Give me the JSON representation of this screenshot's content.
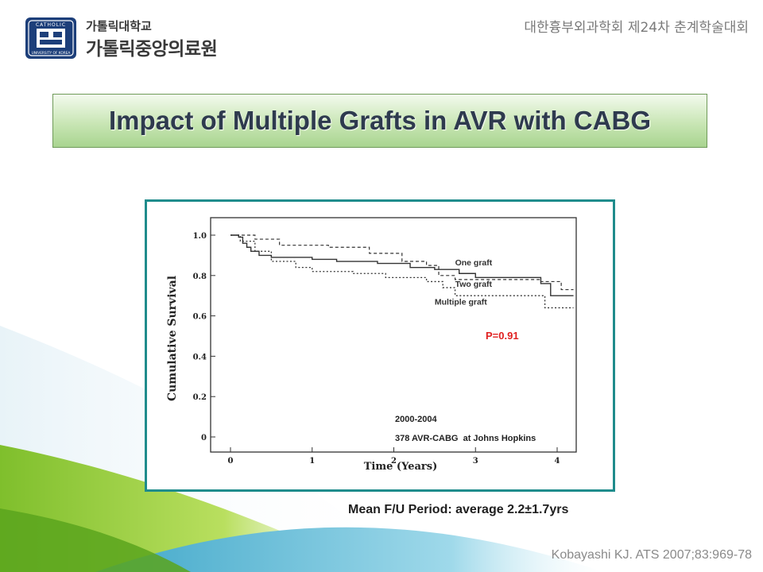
{
  "header": {
    "university_name": "가톨릭대학교",
    "hospital_name": "가톨릭중앙의료원",
    "logo_ring_top": "CATHOLIC",
    "logo_ring_bottom": "UNIVERSITY OF KOREA",
    "conference": "대한흉부외과학회 제24차 춘계학술대회"
  },
  "slide": {
    "title": "Impact of Multiple Grafts in AVR with CABG",
    "mean_fu": "Mean F/U Period: average 2.2±1.7yrs",
    "citation": "Kobayashi KJ. ATS 2007;83:969-78"
  },
  "colors": {
    "title_text": "#2e3a4e",
    "frame": "#1f8c8c",
    "p_value": "#e02020",
    "green_wave": "#8cc63f",
    "teal_wave": "#5bbad5"
  },
  "chart_data": {
    "type": "line",
    "xlabel": "Time (Years)",
    "ylabel": "Cumulative Survival",
    "xlim": [
      0,
      4.2
    ],
    "ylim": [
      0,
      1.0
    ],
    "x_ticks": [
      0,
      1,
      2,
      3,
      4
    ],
    "x_tick_labels": [
      "0",
      "1",
      "2",
      "3",
      "4"
    ],
    "y_ticks": [
      0,
      0.2,
      0.4,
      0.6,
      0.8,
      1.0
    ],
    "y_tick_labels": [
      "0",
      "0.2",
      "0.4",
      "0.6",
      "0.8",
      "1.0"
    ],
    "p_value": "P=0.91",
    "annotation_period": "2000-2004",
    "annotation_cohort": "378 AVR-CABG  at Johns Hopkins",
    "series": [
      {
        "name": "One graft",
        "style": "solid",
        "points": [
          [
            0,
            1.0
          ],
          [
            0.1,
            0.99
          ],
          [
            0.15,
            0.96
          ],
          [
            0.2,
            0.94
          ],
          [
            0.25,
            0.92
          ],
          [
            0.35,
            0.9
          ],
          [
            0.5,
            0.89
          ],
          [
            1.0,
            0.88
          ],
          [
            1.3,
            0.87
          ],
          [
            1.8,
            0.86
          ],
          [
            2.2,
            0.84
          ],
          [
            2.5,
            0.83
          ],
          [
            2.8,
            0.81
          ],
          [
            3.0,
            0.79
          ],
          [
            3.8,
            0.76
          ],
          [
            3.92,
            0.7
          ],
          [
            4.2,
            0.7
          ]
        ]
      },
      {
        "name": "Two graft",
        "style": "dashed",
        "points": [
          [
            0,
            1.0
          ],
          [
            0.3,
            0.98
          ],
          [
            0.6,
            0.95
          ],
          [
            1.2,
            0.94
          ],
          [
            1.7,
            0.91
          ],
          [
            2.1,
            0.87
          ],
          [
            2.4,
            0.85
          ],
          [
            2.55,
            0.8
          ],
          [
            2.75,
            0.78
          ],
          [
            3.3,
            0.78
          ],
          [
            3.8,
            0.77
          ],
          [
            4.05,
            0.73
          ],
          [
            4.2,
            0.73
          ]
        ]
      },
      {
        "name": "Multiple graft",
        "style": "dotted",
        "points": [
          [
            0,
            1.0
          ],
          [
            0.12,
            0.97
          ],
          [
            0.3,
            0.92
          ],
          [
            0.5,
            0.87
          ],
          [
            0.8,
            0.84
          ],
          [
            1.0,
            0.82
          ],
          [
            1.5,
            0.81
          ],
          [
            1.9,
            0.79
          ],
          [
            2.4,
            0.77
          ],
          [
            2.6,
            0.74
          ],
          [
            2.75,
            0.7
          ],
          [
            3.5,
            0.7
          ],
          [
            3.75,
            0.7
          ],
          [
            3.85,
            0.64
          ],
          [
            4.2,
            0.64
          ]
        ]
      }
    ]
  }
}
